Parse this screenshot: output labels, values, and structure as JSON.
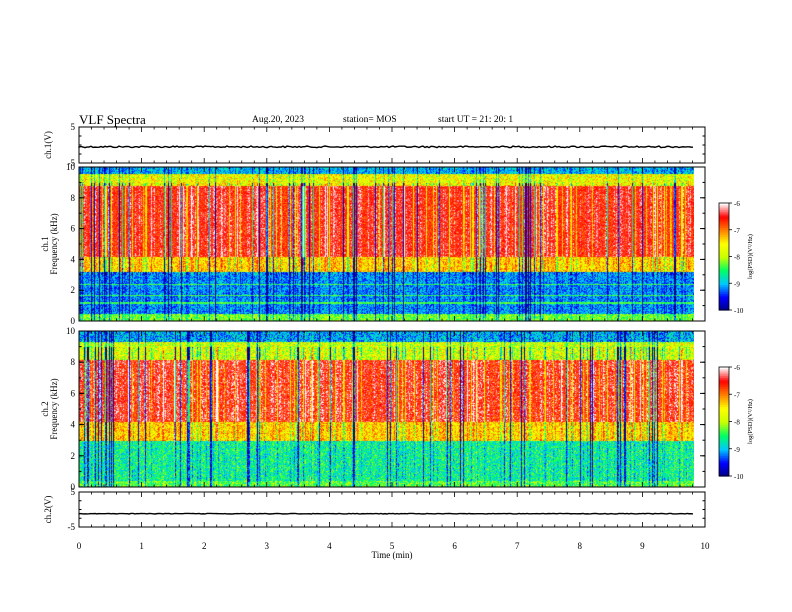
{
  "header": {
    "title": "VLF Spectra",
    "date": "Aug.20, 2023",
    "station": "station= MOS",
    "start": "start  UT =   21: 20: 1"
  },
  "chart_data": [
    {
      "type": "line",
      "name_label": "ch.1(V)",
      "ylabel": "ch.1(V)",
      "ylim": [
        -5,
        5
      ],
      "y_ticks": [
        "5",
        "-5"
      ],
      "values_description_level": -0.5
    },
    {
      "type": "heatmap",
      "ylabel": "Frequency (kHz)",
      "panel_label": "ch.1",
      "ylim": [
        0,
        10
      ],
      "y_ticks": [
        "0",
        "2",
        "4",
        "6",
        "8",
        "10"
      ],
      "colorbar": {
        "label": "log(PSD)(V²/Hz)",
        "range": [
          -10,
          -6
        ],
        "ticks": [
          "-6",
          "-7",
          "-8",
          "-9",
          "-10"
        ]
      },
      "band_low_khz": 3.2,
      "band_high_khz": 9.6
    },
    {
      "type": "heatmap",
      "ylabel": "Frequency (kHz)",
      "panel_label": "ch.2",
      "ylim": [
        0,
        10
      ],
      "y_ticks": [
        "0",
        "2",
        "4",
        "6",
        "8",
        "10"
      ],
      "colorbar": {
        "label": "log(PSD)(V²/Hz)",
        "range": [
          -10,
          -6
        ],
        "ticks": [
          "-6",
          "-7",
          "-8",
          "-9",
          "-10"
        ]
      },
      "band_low_khz": 3.0,
      "band_high_khz": 9.0
    },
    {
      "type": "line",
      "ylabel": "ch.2(V)",
      "ylim": [
        -5,
        5
      ],
      "y_ticks": [
        "5",
        "-5"
      ],
      "values_description_level": -1.2
    }
  ],
  "x_axis": {
    "label": "Time  (min)",
    "range": [
      0,
      10
    ],
    "ticks": [
      "0",
      "1",
      "2",
      "3",
      "4",
      "5",
      "6",
      "7",
      "8",
      "9",
      "10"
    ],
    "data_end": 9.83
  },
  "colors": {
    "scale": [
      "#000080",
      "#0000ff",
      "#00c8ff",
      "#00ff64",
      "#c8ff00",
      "#ffff00",
      "#ff8000",
      "#ff0000",
      "#ffffff"
    ]
  }
}
